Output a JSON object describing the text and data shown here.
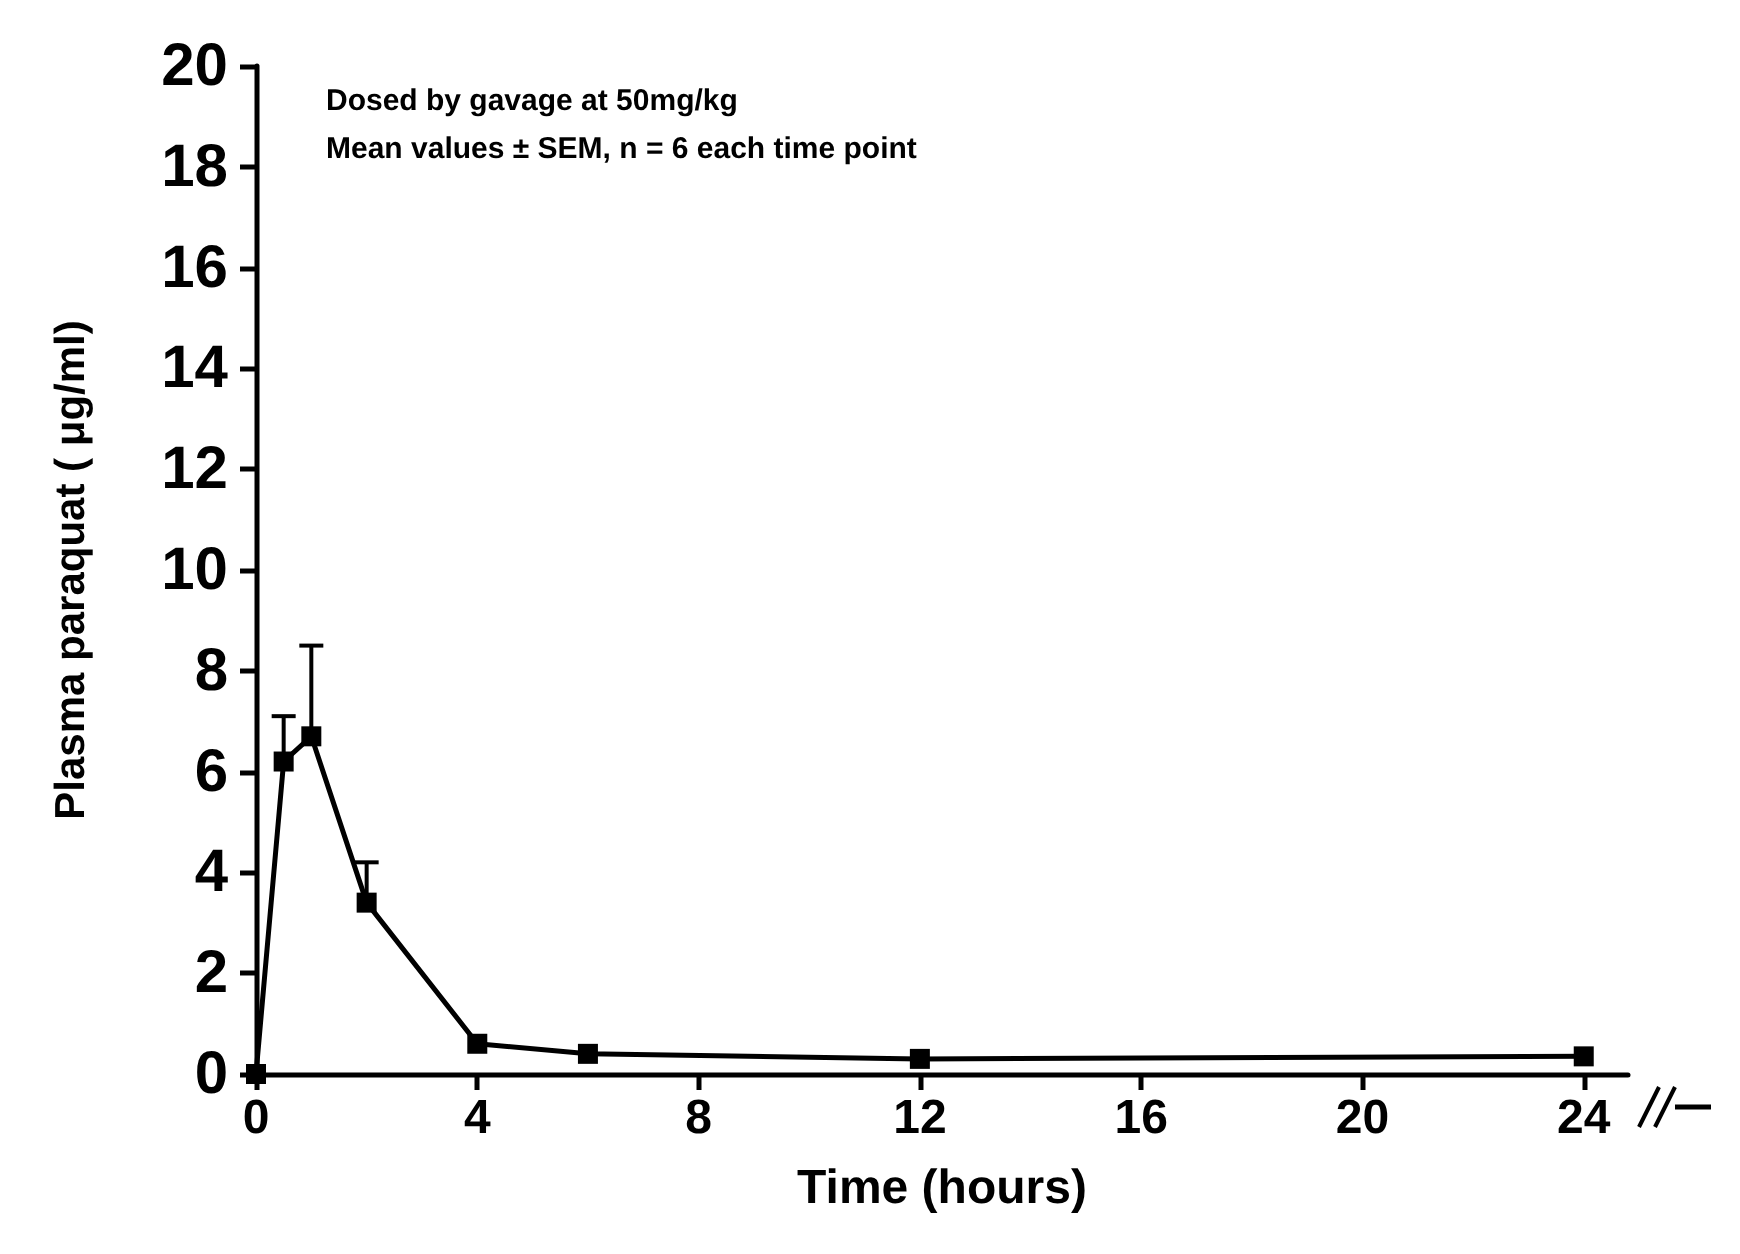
{
  "chart_data": {
    "type": "line",
    "xlabel": "Time (hours)",
    "ylabel": "Plasma paraquat ( μg/ml)",
    "annotations": [
      "Dosed by gavage at 50mg/kg",
      "Mean values ± SEM, n = 6 each time point"
    ],
    "x": [
      0,
      0.5,
      1,
      2,
      4,
      6,
      12,
      24
    ],
    "series": [
      {
        "color": "#000000",
        "values": [
          0,
          6.2,
          6.7,
          3.4,
          0.6,
          0.4,
          0.3,
          0.35
        ],
        "errors": [
          null,
          [
            6.2,
            7.1
          ],
          [
            6.7,
            8.5
          ],
          [
            3.4,
            4.2
          ],
          null,
          null,
          null,
          null
        ]
      }
    ],
    "xlim": [
      0,
      24.8
    ],
    "xticks": [
      0,
      4,
      8,
      12,
      16,
      20,
      24
    ],
    "ylim": [
      0,
      20
    ],
    "yticks": [
      0,
      2,
      4,
      6,
      8,
      10,
      12,
      14,
      16,
      18,
      20
    ],
    "grid": false,
    "marker": "square",
    "line_style": "solid"
  }
}
